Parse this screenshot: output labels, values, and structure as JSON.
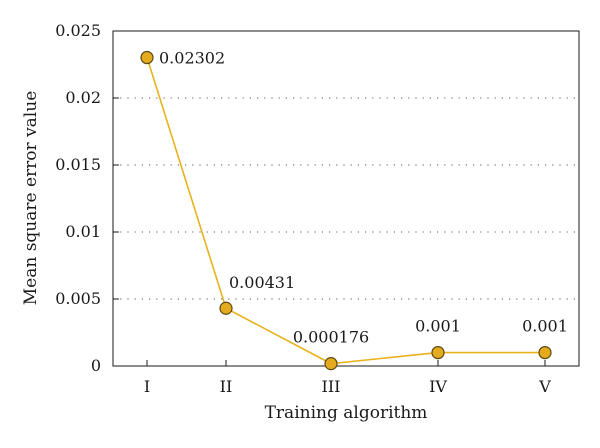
{
  "chart_data": {
    "type": "line",
    "title": "",
    "xlabel": "Training algorithm",
    "ylabel": "Mean square error value",
    "categories": [
      "I",
      "II",
      "III",
      "IV",
      "V"
    ],
    "series": [
      {
        "values": [
          0.02302,
          0.00431,
          0.000176,
          0.001,
          0.001
        ],
        "labels": [
          "0.02302",
          "0.00431",
          "0.000176",
          "0.001",
          "0.001"
        ]
      }
    ],
    "ylim": [
      0,
      0.025
    ],
    "yticks": [
      0,
      0.005,
      0.01,
      0.015,
      0.02,
      0.025
    ],
    "ytick_labels": [
      "0",
      "0.005",
      "0.01",
      "0.015",
      "0.02",
      "0.025"
    ],
    "grid": "horizontal dotted",
    "legend": "none",
    "colors": {
      "line": "#e8b21c",
      "marker_fill": "#e5ab1f",
      "marker_stroke": "#5a4a10",
      "grid": "#777777",
      "axis": "#1a1a1a"
    }
  }
}
